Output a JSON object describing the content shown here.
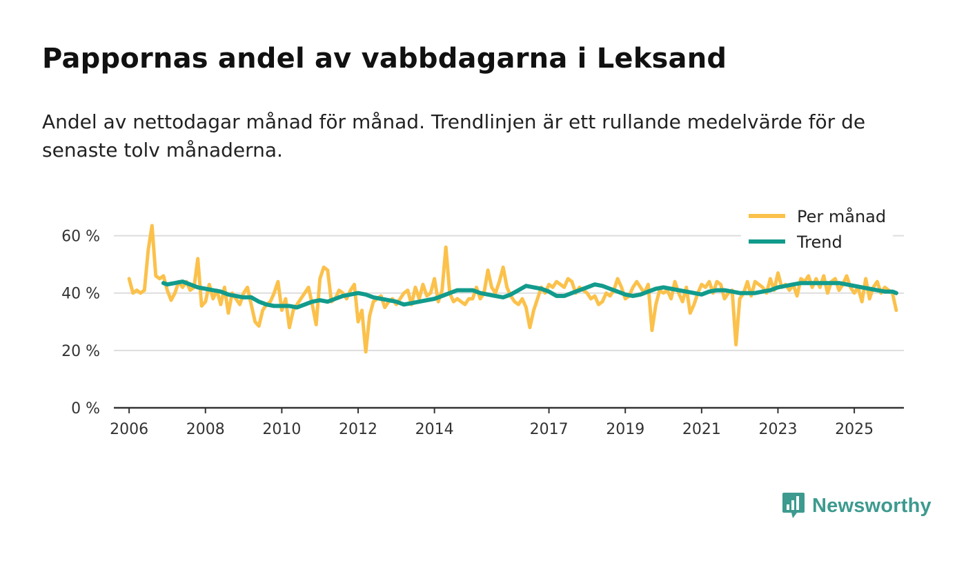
{
  "title": "Pappornas andel av vabbdagarna i Leksand",
  "subtitle": "Andel av nettodagar månad för månad. Trendlinjen är ett rullande medelvärde för de senaste tolv månaderna.",
  "brand": {
    "name": "Newsworthy",
    "color": "#3d9a8f"
  },
  "colors": {
    "monthly": "#fbc14b",
    "trend": "#129b8c",
    "grid": "#dddddd",
    "axis": "#333333",
    "text": "#333333"
  },
  "chart_data": {
    "type": "line",
    "xlabel": "",
    "ylabel": "",
    "ylim": [
      0,
      70
    ],
    "xlim": [
      2005.6,
      2026.3
    ],
    "y_ticks": [
      {
        "value": 0,
        "label": "0 %"
      },
      {
        "value": 20,
        "label": "20 %"
      },
      {
        "value": 40,
        "label": "40 %"
      },
      {
        "value": 60,
        "label": "60 %"
      }
    ],
    "x_ticks": [
      {
        "value": 2006.0,
        "label": "2006"
      },
      {
        "value": 2008.0,
        "label": "2008"
      },
      {
        "value": 2010.0,
        "label": "2010"
      },
      {
        "value": 2012.0,
        "label": "2012"
      },
      {
        "value": 2014.0,
        "label": "2014"
      },
      {
        "value": 2017.0,
        "label": "2017"
      },
      {
        "value": 2019.0,
        "label": "2019"
      },
      {
        "value": 2021.0,
        "label": "2021"
      },
      {
        "value": 2023.0,
        "label": "2023"
      },
      {
        "value": 2025.0,
        "label": "2025"
      }
    ],
    "legend_position": "top-right",
    "series": [
      {
        "name": "Per månad",
        "color": "#fbc14b",
        "points": [
          [
            2006.0,
            45
          ],
          [
            2006.1,
            40
          ],
          [
            2006.2,
            41
          ],
          [
            2006.3,
            40
          ],
          [
            2006.4,
            41
          ],
          [
            2006.5,
            55
          ],
          [
            2006.6,
            63.5
          ],
          [
            2006.7,
            46
          ],
          [
            2006.8,
            45
          ],
          [
            2006.9,
            46
          ],
          [
            2007.0,
            41
          ],
          [
            2007.1,
            37.5
          ],
          [
            2007.2,
            40
          ],
          [
            2007.3,
            44
          ],
          [
            2007.4,
            42
          ],
          [
            2007.5,
            44
          ],
          [
            2007.6,
            41
          ],
          [
            2007.7,
            42
          ],
          [
            2007.8,
            52
          ],
          [
            2007.9,
            35.5
          ],
          [
            2008.0,
            37
          ],
          [
            2008.1,
            43
          ],
          [
            2008.2,
            38
          ],
          [
            2008.3,
            41
          ],
          [
            2008.4,
            36
          ],
          [
            2008.5,
            42
          ],
          [
            2008.6,
            33
          ],
          [
            2008.7,
            40
          ],
          [
            2008.8,
            38
          ],
          [
            2008.9,
            36
          ],
          [
            2009.0,
            40
          ],
          [
            2009.1,
            42
          ],
          [
            2009.2,
            36
          ],
          [
            2009.3,
            30
          ],
          [
            2009.4,
            28.5
          ],
          [
            2009.5,
            34
          ],
          [
            2009.6,
            36
          ],
          [
            2009.7,
            37
          ],
          [
            2009.8,
            40
          ],
          [
            2009.9,
            44
          ],
          [
            2010.0,
            34
          ],
          [
            2010.1,
            38
          ],
          [
            2010.2,
            28
          ],
          [
            2010.3,
            34
          ],
          [
            2010.4,
            36
          ],
          [
            2010.5,
            38
          ],
          [
            2010.6,
            40
          ],
          [
            2010.7,
            42
          ],
          [
            2010.8,
            36
          ],
          [
            2010.9,
            29
          ],
          [
            2011.0,
            45
          ],
          [
            2011.1,
            49
          ],
          [
            2011.2,
            48
          ],
          [
            2011.3,
            37
          ],
          [
            2011.4,
            38
          ],
          [
            2011.5,
            41
          ],
          [
            2011.6,
            40
          ],
          [
            2011.7,
            38
          ],
          [
            2011.8,
            41
          ],
          [
            2011.9,
            43
          ],
          [
            2012.0,
            30
          ],
          [
            2012.1,
            34
          ],
          [
            2012.2,
            19.5
          ],
          [
            2012.3,
            32
          ],
          [
            2012.4,
            37
          ],
          [
            2012.5,
            38
          ],
          [
            2012.6,
            39
          ],
          [
            2012.7,
            35
          ],
          [
            2012.8,
            37
          ],
          [
            2012.9,
            38
          ],
          [
            2013.0,
            36
          ],
          [
            2013.1,
            38
          ],
          [
            2013.2,
            40
          ],
          [
            2013.3,
            41
          ],
          [
            2013.4,
            36
          ],
          [
            2013.5,
            42
          ],
          [
            2013.6,
            38
          ],
          [
            2013.7,
            43
          ],
          [
            2013.8,
            39
          ],
          [
            2013.9,
            40
          ],
          [
            2014.0,
            45
          ],
          [
            2014.1,
            37
          ],
          [
            2014.2,
            41
          ],
          [
            2014.3,
            56
          ],
          [
            2014.4,
            40
          ],
          [
            2014.5,
            37
          ],
          [
            2014.6,
            38
          ],
          [
            2014.7,
            37
          ],
          [
            2014.8,
            36
          ],
          [
            2014.9,
            38
          ],
          [
            2015.0,
            38
          ],
          [
            2015.1,
            42
          ],
          [
            2015.2,
            38
          ],
          [
            2015.3,
            40
          ],
          [
            2015.4,
            48
          ],
          [
            2015.5,
            42
          ],
          [
            2015.6,
            40
          ],
          [
            2015.7,
            44
          ],
          [
            2015.8,
            49
          ],
          [
            2015.9,
            42
          ],
          [
            2016.0,
            39
          ],
          [
            2016.1,
            37
          ],
          [
            2016.2,
            36
          ],
          [
            2016.3,
            38
          ],
          [
            2016.4,
            35
          ],
          [
            2016.5,
            28
          ],
          [
            2016.6,
            34
          ],
          [
            2016.7,
            38
          ],
          [
            2016.8,
            42
          ],
          [
            2016.9,
            40
          ],
          [
            2017.0,
            43
          ],
          [
            2017.1,
            42
          ],
          [
            2017.2,
            44
          ],
          [
            2017.3,
            43
          ],
          [
            2017.4,
            42
          ],
          [
            2017.5,
            45
          ],
          [
            2017.6,
            44
          ],
          [
            2017.7,
            40
          ],
          [
            2017.8,
            42
          ],
          [
            2017.9,
            41
          ],
          [
            2018.0,
            40
          ],
          [
            2018.1,
            38
          ],
          [
            2018.2,
            39
          ],
          [
            2018.3,
            36
          ],
          [
            2018.4,
            37
          ],
          [
            2018.5,
            40
          ],
          [
            2018.6,
            39
          ],
          [
            2018.7,
            41
          ],
          [
            2018.8,
            45
          ],
          [
            2018.9,
            42
          ],
          [
            2019.0,
            38
          ],
          [
            2019.1,
            39
          ],
          [
            2019.2,
            42
          ],
          [
            2019.3,
            44
          ],
          [
            2019.4,
            42
          ],
          [
            2019.5,
            40
          ],
          [
            2019.6,
            43
          ],
          [
            2019.7,
            27
          ],
          [
            2019.8,
            36
          ],
          [
            2019.9,
            41
          ],
          [
            2020.0,
            40
          ],
          [
            2020.1,
            41
          ],
          [
            2020.2,
            38
          ],
          [
            2020.3,
            44
          ],
          [
            2020.4,
            40
          ],
          [
            2020.5,
            37
          ],
          [
            2020.6,
            42
          ],
          [
            2020.7,
            33
          ],
          [
            2020.8,
            36
          ],
          [
            2020.9,
            40
          ],
          [
            2021.0,
            43
          ],
          [
            2021.1,
            42
          ],
          [
            2021.2,
            44
          ],
          [
            2021.3,
            40
          ],
          [
            2021.4,
            44
          ],
          [
            2021.5,
            43
          ],
          [
            2021.6,
            38
          ],
          [
            2021.7,
            40
          ],
          [
            2021.8,
            41
          ],
          [
            2021.9,
            22
          ],
          [
            2022.0,
            38
          ],
          [
            2022.1,
            40
          ],
          [
            2022.2,
            44
          ],
          [
            2022.3,
            39
          ],
          [
            2022.4,
            44
          ],
          [
            2022.5,
            43
          ],
          [
            2022.6,
            42
          ],
          [
            2022.7,
            40
          ],
          [
            2022.8,
            45
          ],
          [
            2022.9,
            41
          ],
          [
            2023.0,
            47
          ],
          [
            2023.1,
            42
          ],
          [
            2023.2,
            43
          ],
          [
            2023.3,
            41
          ],
          [
            2023.4,
            43
          ],
          [
            2023.5,
            39
          ],
          [
            2023.6,
            45
          ],
          [
            2023.7,
            44
          ],
          [
            2023.8,
            46
          ],
          [
            2023.9,
            42
          ],
          [
            2024.0,
            45
          ],
          [
            2024.1,
            42
          ],
          [
            2024.2,
            46
          ],
          [
            2024.3,
            40
          ],
          [
            2024.4,
            44
          ],
          [
            2024.5,
            45
          ],
          [
            2024.6,
            41
          ],
          [
            2024.7,
            43
          ],
          [
            2024.8,
            46
          ],
          [
            2024.9,
            42
          ],
          [
            2025.0,
            40
          ],
          [
            2025.1,
            42
          ],
          [
            2025.2,
            37
          ],
          [
            2025.3,
            45
          ],
          [
            2025.4,
            38
          ],
          [
            2025.5,
            42
          ],
          [
            2025.6,
            44
          ],
          [
            2025.7,
            40
          ],
          [
            2025.8,
            42
          ],
          [
            2025.9,
            41
          ],
          [
            2026.0,
            40
          ],
          [
            2026.1,
            34
          ]
        ]
      },
      {
        "name": "Trend",
        "color": "#129b8c",
        "points": [
          [
            2006.9,
            43.5
          ],
          [
            2007.0,
            43
          ],
          [
            2007.2,
            43.5
          ],
          [
            2007.4,
            44
          ],
          [
            2007.6,
            43
          ],
          [
            2007.8,
            42
          ],
          [
            2008.0,
            41.5
          ],
          [
            2008.2,
            41
          ],
          [
            2008.4,
            40.5
          ],
          [
            2008.6,
            39.5
          ],
          [
            2008.8,
            39
          ],
          [
            2009.0,
            38.5
          ],
          [
            2009.2,
            38.5
          ],
          [
            2009.4,
            37
          ],
          [
            2009.6,
            36
          ],
          [
            2009.8,
            35.5
          ],
          [
            2010.0,
            35.5
          ],
          [
            2010.2,
            35.5
          ],
          [
            2010.4,
            35
          ],
          [
            2010.6,
            36
          ],
          [
            2010.8,
            37
          ],
          [
            2011.0,
            37.5
          ],
          [
            2011.2,
            37
          ],
          [
            2011.4,
            38
          ],
          [
            2011.6,
            39
          ],
          [
            2011.8,
            39.5
          ],
          [
            2012.0,
            40
          ],
          [
            2012.2,
            39.5
          ],
          [
            2012.4,
            38.5
          ],
          [
            2012.6,
            38
          ],
          [
            2012.8,
            37.5
          ],
          [
            2013.0,
            37
          ],
          [
            2013.2,
            36
          ],
          [
            2013.4,
            36.5
          ],
          [
            2013.6,
            37
          ],
          [
            2013.8,
            37.5
          ],
          [
            2014.0,
            38
          ],
          [
            2014.2,
            39
          ],
          [
            2014.4,
            40
          ],
          [
            2014.6,
            41
          ],
          [
            2014.8,
            41
          ],
          [
            2015.0,
            41
          ],
          [
            2015.2,
            40
          ],
          [
            2015.4,
            39.5
          ],
          [
            2015.6,
            39
          ],
          [
            2015.8,
            38.5
          ],
          [
            2016.0,
            39.5
          ],
          [
            2016.2,
            41
          ],
          [
            2016.4,
            42.5
          ],
          [
            2016.6,
            42
          ],
          [
            2016.8,
            41.5
          ],
          [
            2017.0,
            40.5
          ],
          [
            2017.2,
            39
          ],
          [
            2017.4,
            39
          ],
          [
            2017.6,
            40
          ],
          [
            2017.8,
            41
          ],
          [
            2018.0,
            42
          ],
          [
            2018.2,
            43
          ],
          [
            2018.4,
            42.5
          ],
          [
            2018.6,
            41.5
          ],
          [
            2018.8,
            40.5
          ],
          [
            2019.0,
            39.5
          ],
          [
            2019.2,
            39
          ],
          [
            2019.4,
            39.5
          ],
          [
            2019.6,
            40.5
          ],
          [
            2019.8,
            41.5
          ],
          [
            2020.0,
            42
          ],
          [
            2020.2,
            41.5
          ],
          [
            2020.4,
            41
          ],
          [
            2020.6,
            40.5
          ],
          [
            2020.8,
            40
          ],
          [
            2021.0,
            39.5
          ],
          [
            2021.2,
            40.5
          ],
          [
            2021.4,
            41
          ],
          [
            2021.6,
            41
          ],
          [
            2021.8,
            40.5
          ],
          [
            2022.0,
            40
          ],
          [
            2022.2,
            40
          ],
          [
            2022.4,
            40
          ],
          [
            2022.6,
            40.5
          ],
          [
            2022.8,
            41
          ],
          [
            2023.0,
            42
          ],
          [
            2023.2,
            42.5
          ],
          [
            2023.4,
            43
          ],
          [
            2023.6,
            43.5
          ],
          [
            2023.8,
            43.5
          ],
          [
            2024.0,
            43.5
          ],
          [
            2024.2,
            43.5
          ],
          [
            2024.4,
            43.5
          ],
          [
            2024.6,
            43.5
          ],
          [
            2024.8,
            43
          ],
          [
            2025.0,
            42.5
          ],
          [
            2025.2,
            42
          ],
          [
            2025.4,
            41.5
          ],
          [
            2025.6,
            41
          ],
          [
            2025.8,
            40.5
          ],
          [
            2026.0,
            40.5
          ],
          [
            2026.1,
            40
          ]
        ]
      }
    ]
  }
}
